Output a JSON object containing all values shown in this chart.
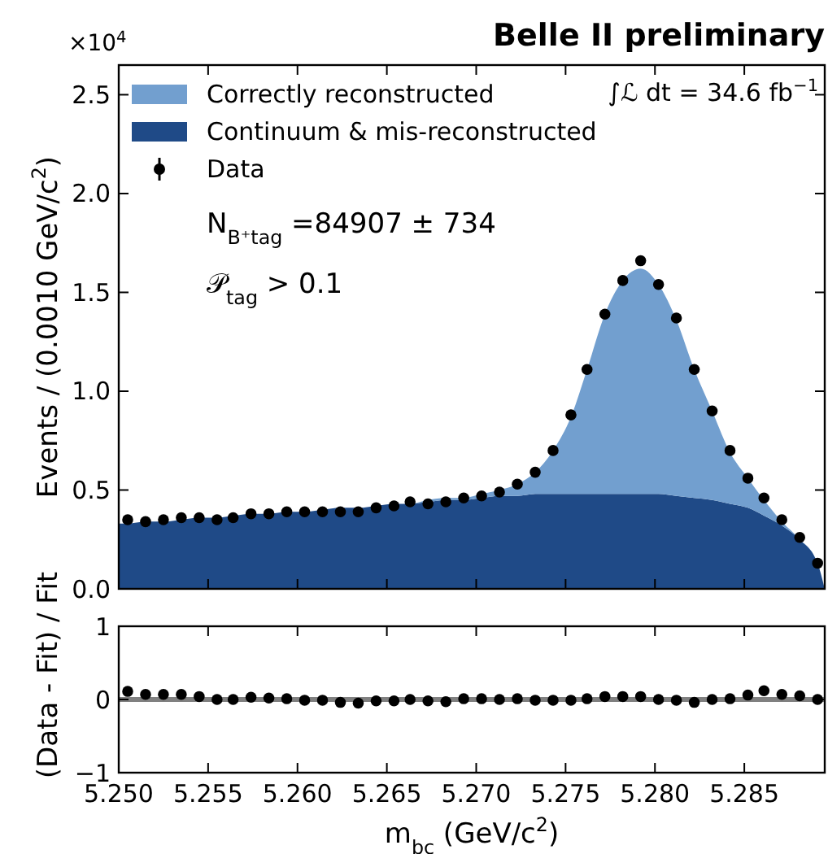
{
  "chart_data": [
    {
      "type": "area",
      "title": "Belle II preliminary",
      "ylabel": "Events / (0.0010 GeV/c$^{2}$)",
      "stacked": true,
      "legend": "top left",
      "tick_labels": "y",
      "annotations": [
        "×10$^{4}$",
        "∫ℒ dt = 34.6 fb$^{−1}$",
        "N$_{B⁺tag}$ =84907 ± 734",
        "𝒫$_{tag}$ > 0.1"
      ],
      "xlim": [
        5.25,
        5.2895
      ],
      "xticks": [
        5.25,
        5.255,
        5.26,
        5.265,
        5.27,
        5.275,
        5.28,
        5.285
      ],
      "ylim": [
        0,
        2.65
      ],
      "yticks": [
        {
          "value": 0,
          "label": "0.0"
        },
        {
          "value": 0.5,
          "label": "0.5"
        },
        {
          "value": 1,
          "label": "1.0"
        },
        {
          "value": 1.5,
          "label": "1.5"
        },
        {
          "value": 2,
          "label": "2.0"
        },
        {
          "value": 2.5,
          "label": "2.5"
        }
      ],
      "series": [
        {
          "name": "Continuum & mis-reconstructed",
          "color": "#1f4a87",
          "x": [
            5.25,
            5.2505,
            5.2515,
            5.2525,
            5.2535,
            5.2545,
            5.2555,
            5.2564,
            5.2574,
            5.2584,
            5.2594,
            5.2604,
            5.2614,
            5.2624,
            5.2634,
            5.2644,
            5.2654,
            5.2663,
            5.2673,
            5.2683,
            5.2693,
            5.2703,
            5.2713,
            5.2723,
            5.2733,
            5.2743,
            5.2753,
            5.2762,
            5.2772,
            5.2782,
            5.2792,
            5.2802,
            5.2812,
            5.2822,
            5.2832,
            5.2842,
            5.2852,
            5.2861,
            5.2871,
            5.2881,
            5.2891,
            5.2895
          ],
          "values": [
            0.33,
            0.33,
            0.34,
            0.34,
            0.35,
            0.36,
            0.36,
            0.37,
            0.38,
            0.38,
            0.39,
            0.39,
            0.4,
            0.41,
            0.41,
            0.42,
            0.43,
            0.43,
            0.44,
            0.45,
            0.45,
            0.46,
            0.47,
            0.47,
            0.48,
            0.48,
            0.48,
            0.48,
            0.48,
            0.48,
            0.48,
            0.48,
            0.47,
            0.46,
            0.45,
            0.43,
            0.41,
            0.37,
            0.32,
            0.25,
            0.13,
            0
          ]
        },
        {
          "name": "Correctly reconstructed",
          "color": "#729fcf",
          "x": [
            5.25,
            5.2505,
            5.2515,
            5.2525,
            5.2535,
            5.2545,
            5.2555,
            5.2564,
            5.2574,
            5.2584,
            5.2594,
            5.2604,
            5.2614,
            5.2624,
            5.2634,
            5.2644,
            5.2654,
            5.2663,
            5.2673,
            5.2683,
            5.2693,
            5.2703,
            5.2713,
            5.2723,
            5.2733,
            5.2743,
            5.2753,
            5.2762,
            5.2772,
            5.2782,
            5.2792,
            5.2802,
            5.2812,
            5.2822,
            5.2832,
            5.2842,
            5.2852,
            5.2861,
            5.2871,
            5.2881,
            5.2891,
            5.2895
          ],
          "values": [
            0,
            0,
            0,
            0,
            0,
            0,
            0,
            0,
            0,
            0,
            0,
            0,
            0,
            0,
            0,
            0,
            0,
            0,
            0.01,
            0.01,
            0.01,
            0.02,
            0.03,
            0.06,
            0.11,
            0.22,
            0.39,
            0.63,
            0.91,
            1.08,
            1.14,
            1.06,
            0.89,
            0.65,
            0.45,
            0.26,
            0.15,
            0.08,
            0.02,
            0,
            0,
            0
          ]
        },
        {
          "name": "Data",
          "type": "scatter",
          "marker": "circle",
          "color": "#000000",
          "x": [
            5.2505,
            5.2515,
            5.2525,
            5.2535,
            5.2545,
            5.2555,
            5.2564,
            5.2574,
            5.2584,
            5.2594,
            5.2604,
            5.2614,
            5.2624,
            5.2634,
            5.2644,
            5.2654,
            5.2663,
            5.2673,
            5.2683,
            5.2693,
            5.2703,
            5.2713,
            5.2723,
            5.2733,
            5.2743,
            5.2753,
            5.2762,
            5.2772,
            5.2782,
            5.2792,
            5.2802,
            5.2812,
            5.2822,
            5.2832,
            5.2842,
            5.2852,
            5.2861,
            5.2871,
            5.2881,
            5.2891
          ],
          "values": [
            0.35,
            0.34,
            0.35,
            0.36,
            0.36,
            0.35,
            0.36,
            0.38,
            0.38,
            0.39,
            0.39,
            0.39,
            0.39,
            0.39,
            0.41,
            0.42,
            0.44,
            0.43,
            0.44,
            0.46,
            0.47,
            0.49,
            0.53,
            0.59,
            0.7,
            0.88,
            1.11,
            1.39,
            1.56,
            1.66,
            1.54,
            1.37,
            1.11,
            0.9,
            0.7,
            0.56,
            0.46,
            0.35,
            0.26,
            0.13
          ]
        }
      ]
    },
    {
      "type": "scatter",
      "xlabel": "m$_{bc}$ (GeV/c$^{2}$)",
      "ylabel": "(Data - Fit) / Fit",
      "marker": "circle",
      "xlim": [
        5.25,
        5.2895
      ],
      "xticks": [
        {
          "value": 5.25,
          "label": "5.250"
        },
        {
          "value": 5.255,
          "label": "5.255"
        },
        {
          "value": 5.26,
          "label": "5.260"
        },
        {
          "value": 5.265,
          "label": "5.265"
        },
        {
          "value": 5.27,
          "label": "5.270"
        },
        {
          "value": 5.275,
          "label": "5.275"
        },
        {
          "value": 5.28,
          "label": "5.280"
        },
        {
          "value": 5.285,
          "label": "5.285"
        }
      ],
      "ylim": [
        -1,
        1
      ],
      "yticks": [
        {
          "value": -1,
          "label": "−1"
        },
        0,
        1
      ],
      "ref_lines": [
        {
          "axis": "y",
          "value": 0,
          "color": "#808080"
        }
      ],
      "series": [
        {
          "color": "#000000",
          "x": [
            5.2505,
            5.2515,
            5.2525,
            5.2535,
            5.2545,
            5.2555,
            5.2564,
            5.2574,
            5.2584,
            5.2594,
            5.2604,
            5.2614,
            5.2624,
            5.2634,
            5.2644,
            5.2654,
            5.2663,
            5.2673,
            5.2683,
            5.2693,
            5.2703,
            5.2713,
            5.2723,
            5.2733,
            5.2743,
            5.2753,
            5.2762,
            5.2772,
            5.2782,
            5.2792,
            5.2802,
            5.2812,
            5.2822,
            5.2832,
            5.2842,
            5.2852,
            5.2861,
            5.2871,
            5.2881,
            5.2891
          ],
          "values": [
            0.11,
            0.07,
            0.07,
            0.07,
            0.04,
            0,
            0,
            0.03,
            0.02,
            0.01,
            -0.01,
            -0.01,
            -0.04,
            -0.05,
            -0.02,
            -0.02,
            0,
            -0.02,
            -0.03,
            0.01,
            0.01,
            0,
            0.01,
            -0.01,
            -0.01,
            -0.01,
            0.01,
            0.04,
            0.04,
            0.04,
            0,
            -0.01,
            -0.04,
            0,
            0.01,
            0.06,
            0.12,
            0.07,
            0.05,
            0
          ]
        }
      ]
    }
  ]
}
